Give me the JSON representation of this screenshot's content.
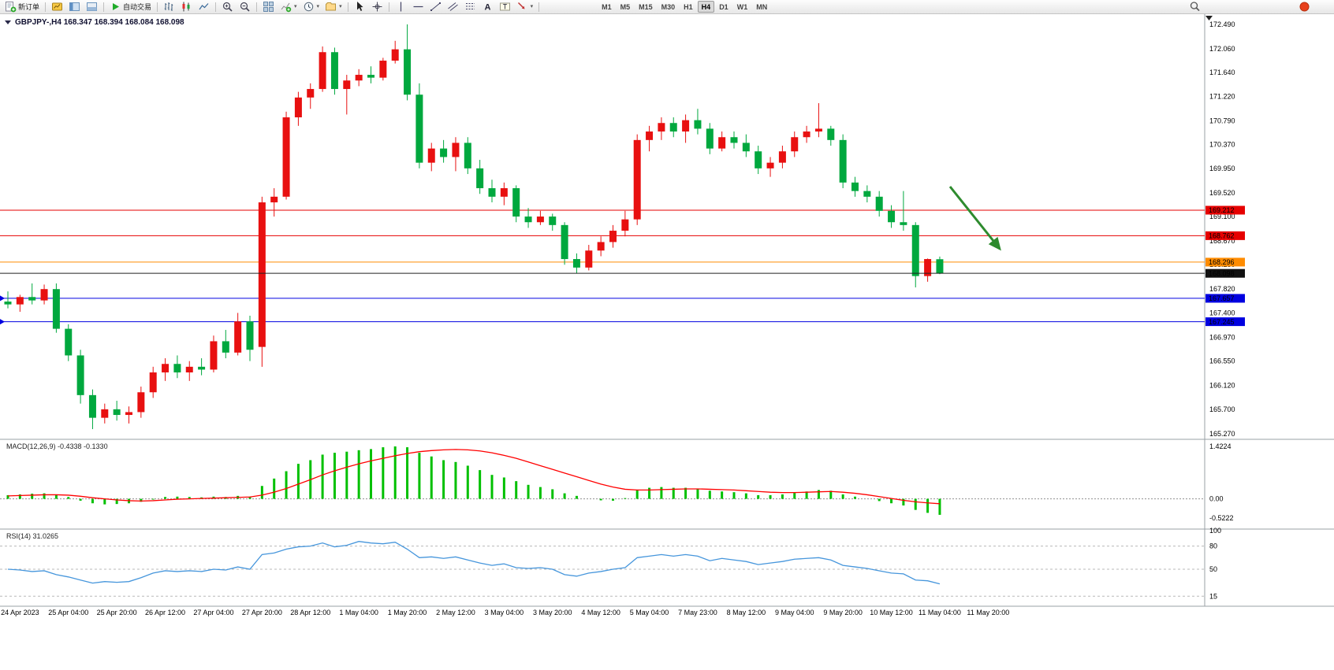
{
  "window": {
    "background": "#ffffff"
  },
  "toolbar": {
    "new_order_label": "新订单",
    "autotrade_label": "自动交易",
    "icon_groups": [
      [
        "market-watch",
        "navigator",
        "terminal"
      ],
      [
        "bar-chart",
        "candlestick-chart",
        "line-chart"
      ],
      [
        "zoom-in",
        "zoom-out"
      ],
      [
        "tile-windows",
        "indicators",
        "periods",
        "templates"
      ],
      [
        "cursor",
        "crosshair"
      ],
      [
        "vertical-line",
        "horizontal-line",
        "trendline",
        "equidistant-channel",
        "fibonacci",
        "text",
        "text-label",
        "arrows"
      ]
    ],
    "dropdown_icons": [
      "indicators",
      "periods",
      "templates",
      "arrows"
    ],
    "timeframes": [
      "M1",
      "M5",
      "M15",
      "M30",
      "H1",
      "H4",
      "D1",
      "W1",
      "MN"
    ],
    "active_timeframe": "H4",
    "right_icons": [
      "search",
      "notification"
    ]
  },
  "chart_header": {
    "collapse_icon": "triangle-down",
    "title": "GBPJPY-,H4  168.347 168.394 168.084 168.098"
  },
  "chart_data": [
    {
      "type": "candlestick",
      "symbol": "GBPJPY-",
      "timeframe": "H4",
      "current_ohlc": {
        "open": 168.347,
        "high": 168.394,
        "low": 168.084,
        "close": 168.098
      },
      "bull_color": "#e81010",
      "bear_color": "#00a83e",
      "ylim": [
        165.17,
        172.67
      ],
      "y_ticks": [
        "172.490",
        "172.060",
        "171.640",
        "171.220",
        "170.790",
        "170.370",
        "169.950",
        "169.520",
        "169.100",
        "168.670",
        "168.250",
        "167.820",
        "167.400",
        "166.970",
        "166.550",
        "166.120",
        "165.700",
        "165.270"
      ],
      "x_labels": [
        "24 Apr 2023",
        "25 Apr 04:00",
        "25 Apr 20:00",
        "26 Apr 12:00",
        "27 Apr 04:00",
        "27 Apr 20:00",
        "28 Apr 12:00",
        "1 May 04:00",
        "1 May 20:00",
        "2 May 12:00",
        "3 May 04:00",
        "3 May 20:00",
        "4 May 12:00",
        "5 May 04:00",
        "7 May 23:00",
        "8 May 12:00",
        "9 May 04:00",
        "9 May 20:00",
        "10 May 12:00",
        "11 May 04:00",
        "11 May 20:00"
      ],
      "hlines": [
        {
          "price": 169.212,
          "label": "169.212",
          "color": "#e60000",
          "marker": false
        },
        {
          "price": 168.762,
          "label": "168.762",
          "color": "#e60000",
          "marker": false
        },
        {
          "price": 168.296,
          "label": "168.296",
          "color": "#ff8c00",
          "marker": false
        },
        {
          "price": 167.657,
          "label": "167.657",
          "color": "#0000e0",
          "marker": true
        },
        {
          "price": 167.245,
          "label": "167.245",
          "color": "#0000e0",
          "marker": true
        }
      ],
      "current_price_line": {
        "price": 168.098,
        "label": "168.098",
        "color": "#202020"
      },
      "arrow": {
        "color": "#2e8b2e",
        "direction": "down-right"
      },
      "candles": [
        [
          167.6,
          167.78,
          167.48,
          167.55
        ],
        [
          167.55,
          167.72,
          167.42,
          167.68
        ],
        [
          167.68,
          167.92,
          167.55,
          167.62
        ],
        [
          167.62,
          167.9,
          167.55,
          167.82
        ],
        [
          167.82,
          167.92,
          167.05,
          167.12
        ],
        [
          167.12,
          167.2,
          166.55,
          166.65
        ],
        [
          166.65,
          166.75,
          165.8,
          165.95
        ],
        [
          165.95,
          166.05,
          165.35,
          165.55
        ],
        [
          165.55,
          165.8,
          165.45,
          165.7
        ],
        [
          165.7,
          165.85,
          165.5,
          165.6
        ],
        [
          165.6,
          165.75,
          165.45,
          165.65
        ],
        [
          165.65,
          166.1,
          165.55,
          166.0
        ],
        [
          166.0,
          166.45,
          165.9,
          166.35
        ],
        [
          166.35,
          166.6,
          166.2,
          166.5
        ],
        [
          166.5,
          166.65,
          166.25,
          166.35
        ],
        [
          166.35,
          166.55,
          166.2,
          166.45
        ],
        [
          166.45,
          166.6,
          166.3,
          166.4
        ],
        [
          166.4,
          167.0,
          166.35,
          166.9
        ],
        [
          166.9,
          167.1,
          166.6,
          166.7
        ],
        [
          166.7,
          167.4,
          166.65,
          167.25
        ],
        [
          167.25,
          167.35,
          166.55,
          166.75
        ],
        [
          166.8,
          169.45,
          166.45,
          169.35
        ],
        [
          169.35,
          169.6,
          169.1,
          169.45
        ],
        [
          169.45,
          170.95,
          169.4,
          170.85
        ],
        [
          170.85,
          171.3,
          170.7,
          171.2
        ],
        [
          171.2,
          171.45,
          171.0,
          171.35
        ],
        [
          171.35,
          172.1,
          171.3,
          172.0
        ],
        [
          172.0,
          172.08,
          171.25,
          171.35
        ],
        [
          171.35,
          171.6,
          170.9,
          171.5
        ],
        [
          171.5,
          171.7,
          171.4,
          171.6
        ],
        [
          171.6,
          171.75,
          171.45,
          171.55
        ],
        [
          171.55,
          171.9,
          171.5,
          171.85
        ],
        [
          171.85,
          172.2,
          171.8,
          172.05
        ],
        [
          172.05,
          172.49,
          171.15,
          171.25
        ],
        [
          171.25,
          171.45,
          169.95,
          170.05
        ],
        [
          170.05,
          170.4,
          169.9,
          170.3
        ],
        [
          170.3,
          170.45,
          170.05,
          170.15
        ],
        [
          170.15,
          170.5,
          169.9,
          170.4
        ],
        [
          170.4,
          170.5,
          169.85,
          169.95
        ],
        [
          169.95,
          170.1,
          169.5,
          169.6
        ],
        [
          169.6,
          169.75,
          169.35,
          169.45
        ],
        [
          169.45,
          169.7,
          169.3,
          169.6
        ],
        [
          169.6,
          169.65,
          169.0,
          169.1
        ],
        [
          169.1,
          169.25,
          168.9,
          169.0
        ],
        [
          169.0,
          169.2,
          168.95,
          169.1
        ],
        [
          169.1,
          169.15,
          168.85,
          168.95
        ],
        [
          168.95,
          169.0,
          168.25,
          168.35
        ],
        [
          168.35,
          168.45,
          168.1,
          168.2
        ],
        [
          168.2,
          168.6,
          168.15,
          168.5
        ],
        [
          168.5,
          168.75,
          168.4,
          168.65
        ],
        [
          168.65,
          168.95,
          168.55,
          168.85
        ],
        [
          168.85,
          169.2,
          168.75,
          169.05
        ],
        [
          169.05,
          170.55,
          168.95,
          170.45
        ],
        [
          170.45,
          170.7,
          170.25,
          170.6
        ],
        [
          170.6,
          170.85,
          170.45,
          170.75
        ],
        [
          170.75,
          170.85,
          170.5,
          170.6
        ],
        [
          170.6,
          170.9,
          170.4,
          170.8
        ],
        [
          170.8,
          171.0,
          170.55,
          170.65
        ],
        [
          170.65,
          170.75,
          170.2,
          170.3
        ],
        [
          170.3,
          170.6,
          170.25,
          170.5
        ],
        [
          170.5,
          170.6,
          170.3,
          170.4
        ],
        [
          170.4,
          170.55,
          170.15,
          170.25
        ],
        [
          170.25,
          170.35,
          169.85,
          169.95
        ],
        [
          169.95,
          170.15,
          169.8,
          170.05
        ],
        [
          170.05,
          170.35,
          169.95,
          170.25
        ],
        [
          170.25,
          170.6,
          170.15,
          170.5
        ],
        [
          170.5,
          170.7,
          170.4,
          170.6
        ],
        [
          170.6,
          171.1,
          170.5,
          170.65
        ],
        [
          170.65,
          170.7,
          170.35,
          170.45
        ],
        [
          170.45,
          170.55,
          169.6,
          169.7
        ],
        [
          169.7,
          169.8,
          169.45,
          169.55
        ],
        [
          169.55,
          169.65,
          169.35,
          169.45
        ],
        [
          169.45,
          169.55,
          169.1,
          169.2
        ],
        [
          169.2,
          169.3,
          168.9,
          169.0
        ],
        [
          169.0,
          169.55,
          168.85,
          168.95
        ],
        [
          168.95,
          169.0,
          167.85,
          168.05
        ],
        [
          168.05,
          168.36,
          167.95,
          168.35
        ],
        [
          168.347,
          168.394,
          168.084,
          168.098
        ]
      ]
    },
    {
      "type": "bar",
      "name": "MACD",
      "label": "MACD(12,26,9) -0.4338 -0.1330",
      "params": "12,26,9",
      "macd_value": -0.4338,
      "signal_value": -0.133,
      "histogram_color": "#00c000",
      "signal_color": "#ff0000",
      "y_ticks": [
        {
          "v": 1.4224,
          "label": "1.4224"
        },
        {
          "v": 0,
          "label": "0.00"
        },
        {
          "v": -0.5222,
          "label": "-0.5222"
        }
      ],
      "values": [
        0.1,
        0.12,
        0.14,
        0.15,
        0.1,
        0.05,
        -0.05,
        -0.12,
        -0.15,
        -0.14,
        -0.12,
        -0.08,
        -0.02,
        0.05,
        0.06,
        0.05,
        0.04,
        0.06,
        0.05,
        0.08,
        0.06,
        0.35,
        0.55,
        0.75,
        0.95,
        1.05,
        1.2,
        1.25,
        1.28,
        1.32,
        1.35,
        1.4,
        1.4224,
        1.4,
        1.25,
        1.15,
        1.05,
        1.0,
        0.9,
        0.78,
        0.65,
        0.58,
        0.48,
        0.38,
        0.32,
        0.26,
        0.15,
        0.08,
        0.0,
        -0.04,
        -0.05,
        0.02,
        0.25,
        0.3,
        0.32,
        0.3,
        0.3,
        0.28,
        0.22,
        0.2,
        0.18,
        0.15,
        0.1,
        0.1,
        0.12,
        0.16,
        0.2,
        0.24,
        0.22,
        0.12,
        0.06,
        0.0,
        -0.06,
        -0.12,
        -0.18,
        -0.3,
        -0.38,
        -0.4338
      ],
      "signal": [
        0.08,
        0.09,
        0.1,
        0.11,
        0.11,
        0.1,
        0.07,
        0.03,
        0.0,
        -0.03,
        -0.05,
        -0.06,
        -0.05,
        -0.03,
        -0.01,
        0.0,
        0.01,
        0.02,
        0.03,
        0.04,
        0.05,
        0.1,
        0.18,
        0.28,
        0.4,
        0.52,
        0.65,
        0.76,
        0.86,
        0.95,
        1.03,
        1.1,
        1.17,
        1.23,
        1.28,
        1.31,
        1.33,
        1.34,
        1.33,
        1.3,
        1.25,
        1.18,
        1.1,
        1.0,
        0.9,
        0.8,
        0.7,
        0.6,
        0.5,
        0.4,
        0.32,
        0.26,
        0.24,
        0.24,
        0.25,
        0.26,
        0.27,
        0.27,
        0.26,
        0.25,
        0.24,
        0.22,
        0.2,
        0.18,
        0.17,
        0.17,
        0.18,
        0.19,
        0.2,
        0.18,
        0.15,
        0.11,
        0.06,
        0.01,
        -0.04,
        -0.08,
        -0.11,
        -0.133
      ]
    },
    {
      "type": "line",
      "name": "RSI",
      "label": "RSI(14) 31.0265",
      "period": 14,
      "value": 31.0265,
      "line_color": "#4696dc",
      "levels": [
        80,
        50,
        15
      ],
      "y_ticks": [
        {
          "v": 100,
          "label": "100"
        },
        {
          "v": 80,
          "label": "80"
        },
        {
          "v": 50,
          "label": "50"
        },
        {
          "v": 15,
          "label": "15"
        }
      ],
      "values": [
        50,
        49,
        47,
        48,
        43,
        40,
        36,
        32,
        34,
        33,
        34,
        39,
        45,
        48,
        47,
        48,
        47,
        50,
        49,
        53,
        50,
        69,
        71,
        76,
        79,
        80,
        84,
        79,
        81,
        86,
        84,
        83,
        85,
        76,
        65,
        66,
        64,
        66,
        62,
        58,
        55,
        57,
        52,
        51,
        52,
        50,
        43,
        41,
        45,
        47,
        50,
        52,
        65,
        67,
        69,
        67,
        69,
        67,
        61,
        64,
        62,
        60,
        56,
        58,
        60,
        63,
        64,
        65,
        62,
        55,
        53,
        51,
        48,
        45,
        44,
        36,
        35,
        31.03
      ]
    }
  ]
}
